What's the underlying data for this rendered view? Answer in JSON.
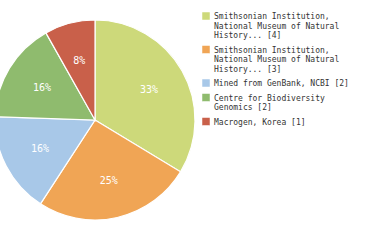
{
  "chart_data": {
    "type": "pie",
    "categories": [
      "Smithsonian Institution,\nNational Museum of Natural\nHistory... [4]",
      "Smithsonian Institution,\nNational Museum of Natural\nHistory... [3]",
      "Mined from GenBank, NCBI [2]",
      "Centre for Biodiversity\nGenomics [2]",
      "Macrogen, Korea [1]"
    ],
    "values": [
      33,
      25,
      16,
      16,
      8
    ],
    "value_labels": [
      "33%",
      "25%",
      "16%",
      "16%",
      "8%"
    ],
    "colors": [
      "#cdd97a",
      "#f0a555",
      "#a8c8e8",
      "#8fbb6e",
      "#c9604a"
    ],
    "data_labels": true,
    "legend": "right"
  }
}
